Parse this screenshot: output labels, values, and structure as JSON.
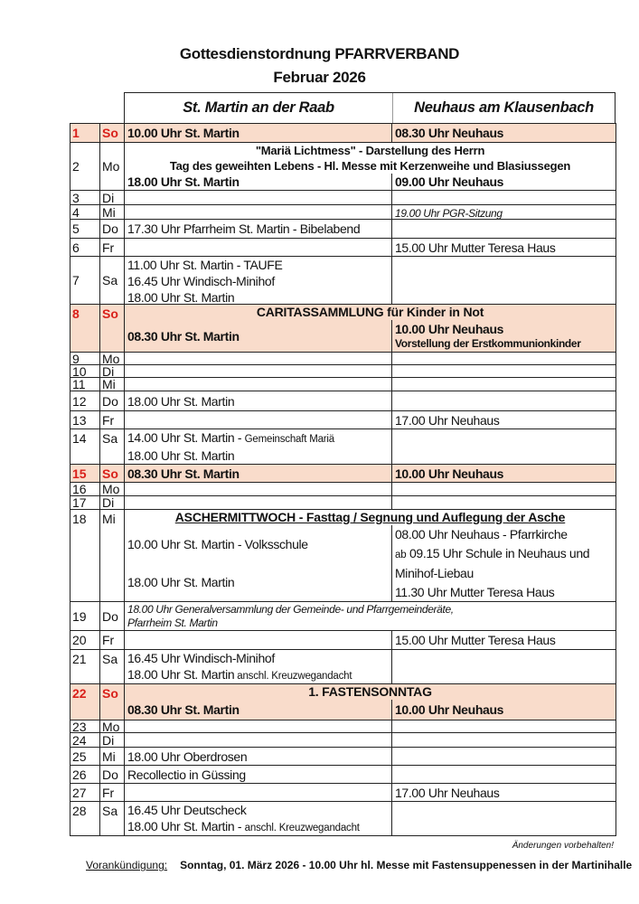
{
  "title": "Gottesdienstordnung PFARRVERBAND",
  "subtitle": "Februar 2026",
  "columns": {
    "martin": "St. Martin an der Raab",
    "neuhaus": "Neuhaus am Klausenbach"
  },
  "colors": {
    "sunday_bg": "#f9dccb",
    "sunday_text": "#d9201a"
  },
  "rows": [
    {
      "day": "1",
      "dow": "So",
      "sunday": true,
      "martin": [
        {
          "text": "10.00 Uhr  St. Martin",
          "style": "bold"
        }
      ],
      "neuhaus": [
        {
          "text": "08.30 Uhr  Neuhaus",
          "style": "bold"
        }
      ]
    },
    {
      "day": "2",
      "dow": "Mo",
      "banner": [
        "\"Mariä Lichtmess\" - Darstellung des Herrn",
        "Tag des geweihten Lebens - Hl. Messe mit Kerzenweihe und Blasiussegen"
      ],
      "martin": [
        {
          "text": "18.00 Uhr  St. Martin",
          "style": "bold"
        }
      ],
      "neuhaus": [
        {
          "text": "09.00 Uhr  Neuhaus",
          "style": "bold"
        }
      ]
    },
    {
      "day": "3",
      "dow": "Di",
      "martin": [],
      "neuhaus": []
    },
    {
      "day": "4",
      "dow": "Mi",
      "martin": [],
      "neuhaus": [
        {
          "text": "19.00 Uhr  PGR-Sitzung",
          "style": "italic"
        }
      ]
    },
    {
      "day": "5",
      "dow": "Do",
      "martin": [
        {
          "text": "17.30 Uhr  Pfarrheim St. Martin - Bibelabend"
        }
      ],
      "neuhaus": []
    },
    {
      "day": "6",
      "dow": "Fr",
      "martin": [],
      "neuhaus": [
        {
          "text": "15.00 Uhr  Mutter Teresa Haus"
        }
      ]
    },
    {
      "day": "7",
      "dow": "Sa",
      "martin": [
        {
          "text": "11.00 Uhr  St. Martin - TAUFE"
        },
        {
          "text": "16.45 Uhr  Windisch-Minihof"
        },
        {
          "text": "18.00 Uhr  St. Martin"
        }
      ],
      "neuhaus": []
    },
    {
      "day": "8",
      "dow": "So",
      "sunday": true,
      "banner": [
        "CARITASSAMMLUNG für Kinder in Not"
      ],
      "martin": [
        {
          "text": "08.30 Uhr  St. Martin",
          "style": "bold"
        }
      ],
      "neuhaus": [
        {
          "text": "10.00 Uhr  Neuhaus",
          "style": "bold"
        },
        {
          "text": "Vorstellung der Erstkommunionkinder",
          "style": "smallbold"
        }
      ]
    },
    {
      "day": "9",
      "dow": "Mo",
      "martin": [],
      "neuhaus": []
    },
    {
      "day": "10",
      "dow": "Di",
      "martin": [],
      "neuhaus": []
    },
    {
      "day": "11",
      "dow": "Mi",
      "martin": [],
      "neuhaus": []
    },
    {
      "day": "12",
      "dow": "Do",
      "martin": [
        {
          "text": "18.00 Uhr  St. Martin"
        }
      ],
      "neuhaus": []
    },
    {
      "day": "13",
      "dow": "Fr",
      "martin": [],
      "neuhaus": [
        {
          "text": "17.00 Uhr  Neuhaus"
        }
      ]
    },
    {
      "day": "14",
      "dow": "Sa",
      "martin": [
        {
          "text": "14.00 Uhr  St. Martin - ",
          "small": "Gemeinschaft Mariä"
        },
        {
          "text": "18.00 Uhr  St. Martin"
        }
      ],
      "neuhaus": []
    },
    {
      "day": "15",
      "dow": "So",
      "sunday": true,
      "martin": [
        {
          "text": "08.30 Uhr  St. Martin",
          "style": "bold"
        }
      ],
      "neuhaus": [
        {
          "text": "10.00 Uhr  Neuhaus",
          "style": "bold"
        }
      ]
    },
    {
      "day": "16",
      "dow": "Mo",
      "martin": [],
      "neuhaus": []
    },
    {
      "day": "17",
      "dow": "Di",
      "martin": [],
      "neuhaus": []
    },
    {
      "day": "18",
      "dow": "Mi",
      "banner": [
        "ASCHERMITTWOCH - Fasttag / Segnung und Auflegung der Asche"
      ],
      "banner_underline": true,
      "martin": [
        {
          "text": "10.00 Uhr  St. Martin - Volksschule"
        },
        {
          "text": "18.00 Uhr  St. Martin"
        }
      ],
      "neuhaus": [
        {
          "text": "08.00 Uhr  Neuhaus - Pfarrkirche"
        },
        {
          "prefix": "ab",
          "text": " 09.15 Uhr  Schule in Neuhaus und"
        },
        {
          "text": "Minihof-Liebau"
        },
        {
          "text": "11.30 Uhr  Mutter Teresa Haus"
        }
      ]
    },
    {
      "day": "19",
      "dow": "Do",
      "span": [
        "18.00 Uhr Generalversammlung der Gemeinde- und Pfarrgemeinderäte,",
        "Pfarrheim St. Martin"
      ]
    },
    {
      "day": "20",
      "dow": "Fr",
      "martin": [],
      "neuhaus": [
        {
          "text": "15.00 Uhr  Mutter Teresa Haus"
        }
      ]
    },
    {
      "day": "21",
      "dow": "Sa",
      "martin": [
        {
          "text": "16.45 Uhr  Windisch-Minihof"
        },
        {
          "text": "18.00 Uhr  St. Martin",
          "small": " anschl. Kreuzwegandacht"
        }
      ],
      "neuhaus": []
    },
    {
      "day": "22",
      "dow": "So",
      "sunday": true,
      "banner": [
        "1. FASTENSONNTAG"
      ],
      "martin": [
        {
          "text": "08.30 Uhr  St. Martin",
          "style": "bold"
        }
      ],
      "neuhaus": [
        {
          "text": "10.00 Uhr  Neuhaus",
          "style": "bold"
        }
      ]
    },
    {
      "day": "23",
      "dow": "Mo",
      "martin": [],
      "neuhaus": []
    },
    {
      "day": "24",
      "dow": "Di",
      "martin": [],
      "neuhaus": []
    },
    {
      "day": "25",
      "dow": "Mi",
      "martin": [
        {
          "text": "18.00 Uhr  Oberdrosen"
        }
      ],
      "neuhaus": []
    },
    {
      "day": "26",
      "dow": "Do",
      "martin": [
        {
          "text": "Recollectio in Güssing"
        }
      ],
      "neuhaus": []
    },
    {
      "day": "27",
      "dow": "Fr",
      "martin": [],
      "neuhaus": [
        {
          "text": "17.00 Uhr  Neuhaus"
        }
      ]
    },
    {
      "day": "28",
      "dow": "Sa",
      "martin": [
        {
          "text": "16.45 Uhr  Deutscheck"
        },
        {
          "text": "18.00 Uhr  St. Martin - ",
          "small": "anschl. Kreuzwegandacht"
        }
      ],
      "neuhaus": []
    }
  ],
  "note": "Änderungen vorbehalten!",
  "preview": {
    "label": "Vorankündigung:",
    "text": "Sonntag, 01. März 2026 - 10.00 Uhr hl. Messe mit Fastensuppenessen in der Martinihalle"
  }
}
